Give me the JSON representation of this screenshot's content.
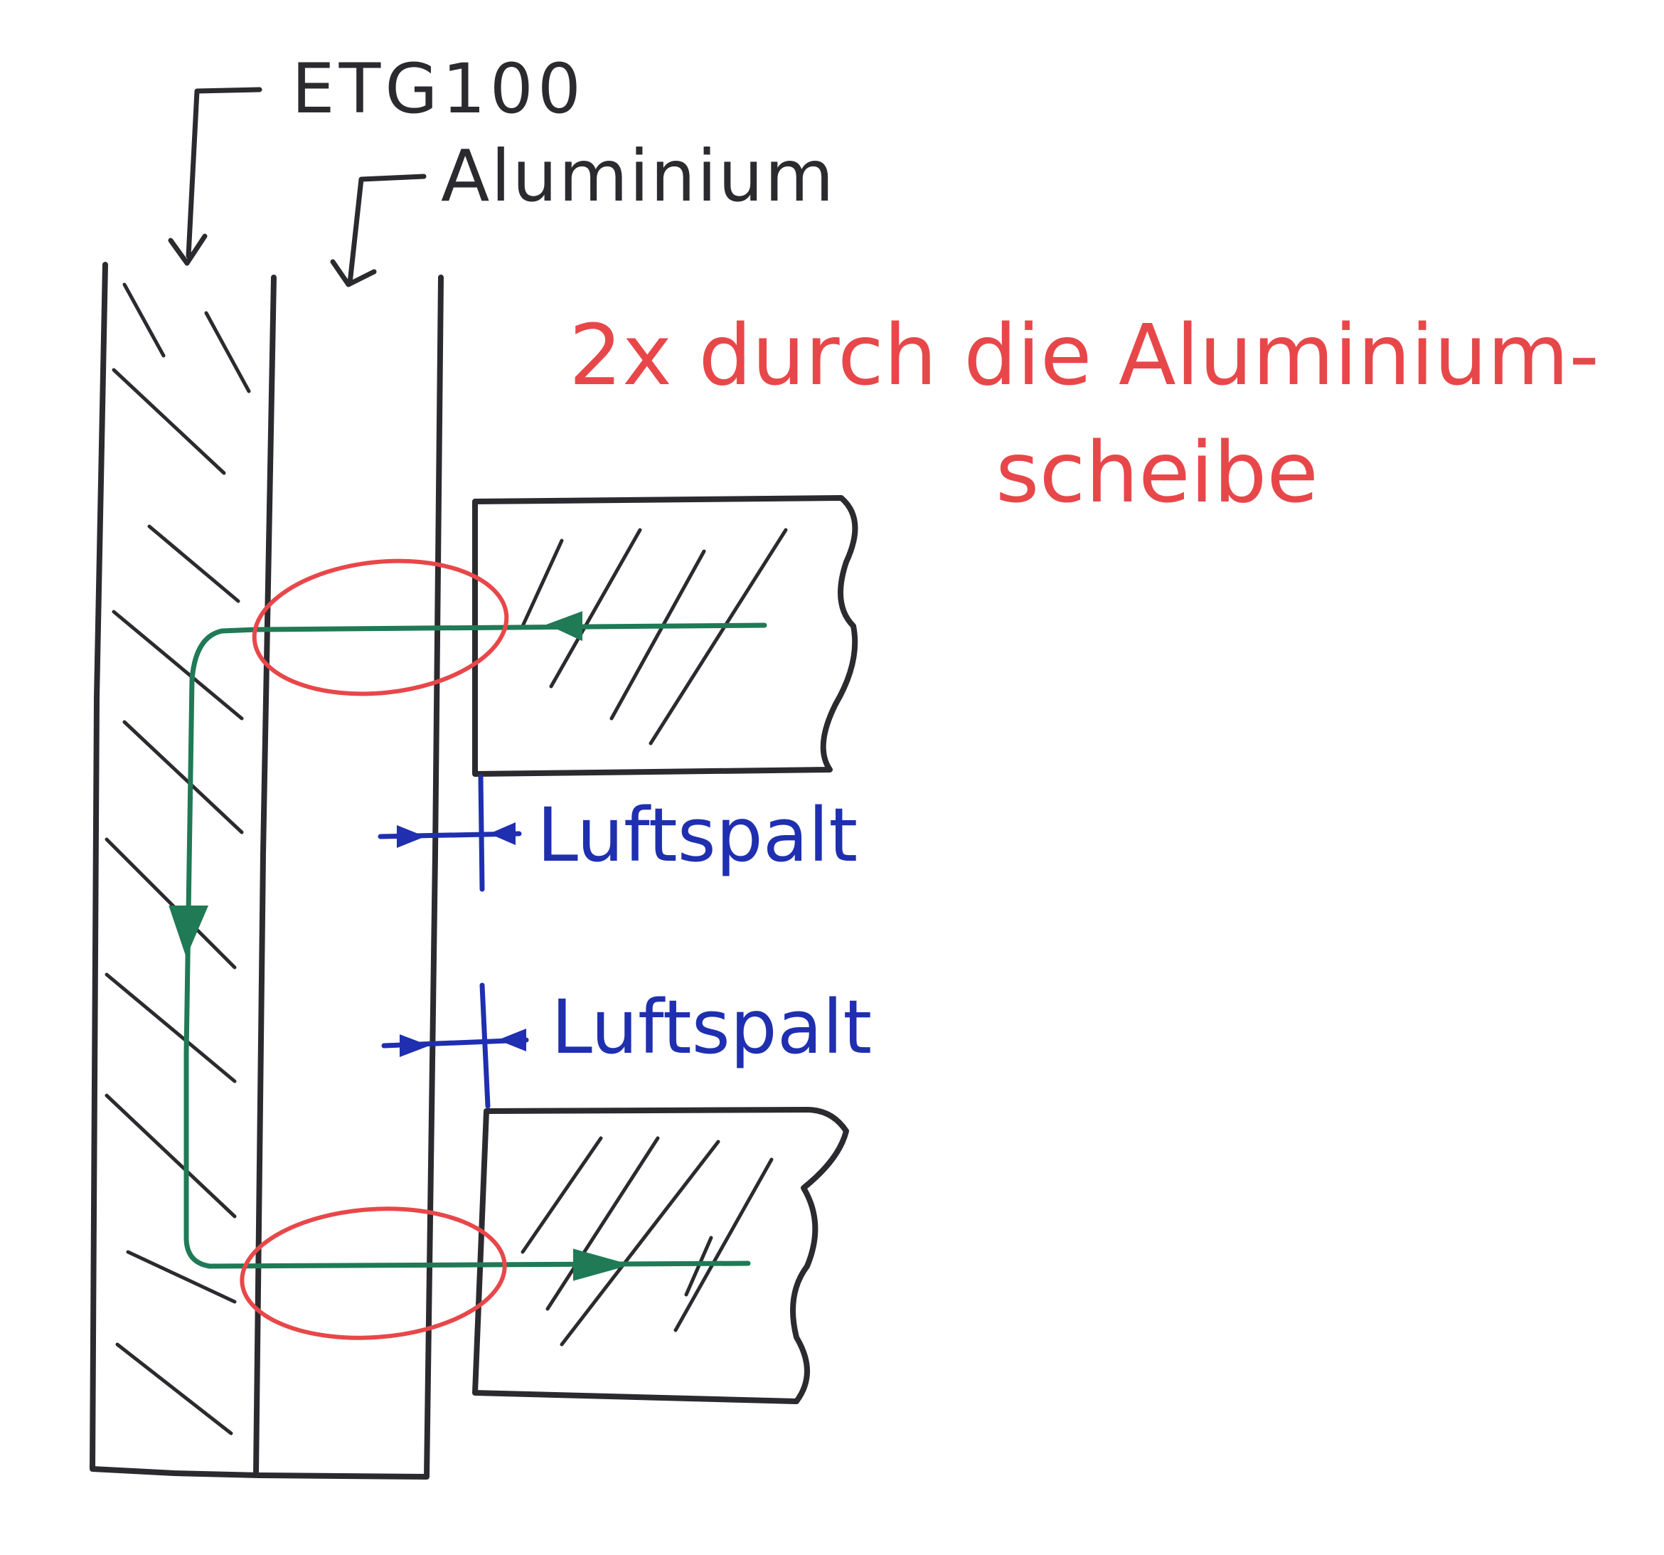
{
  "labels": {
    "etg": "ETG100",
    "aluminium": "Aluminium",
    "note_line1": "2x durch die Aluminium-",
    "note_line2": "scheibe",
    "gap_upper": "Luftspalt",
    "gap_lower": "Luftspalt"
  },
  "colors": {
    "ink_black": "#2b2b2f",
    "flux_green": "#1f7a55",
    "gap_blue": "#1f2fb0",
    "mark_red": "#e8474a"
  }
}
